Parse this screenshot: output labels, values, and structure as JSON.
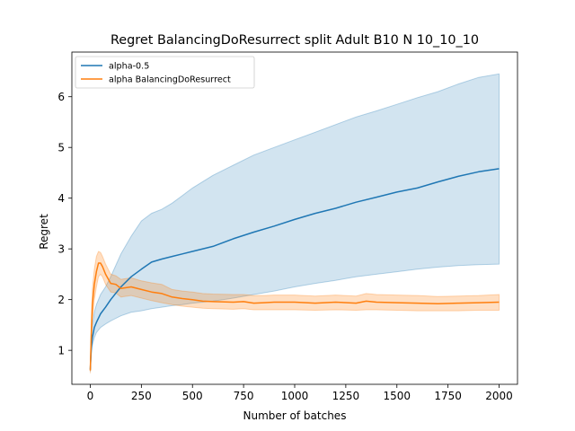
{
  "chart_data": {
    "type": "line",
    "title": "Regret BalancingDoResurrect split Adult B10 N 10_10_10",
    "xlabel": "Number of batches",
    "ylabel": "Regret",
    "xlim": [
      -90,
      2090
    ],
    "ylim": [
      0.33,
      6.88
    ],
    "xticks": [
      0,
      250,
      500,
      750,
      1000,
      1250,
      1500,
      1750,
      2000
    ],
    "yticks": [
      1,
      2,
      3,
      4,
      5,
      6
    ],
    "grid": false,
    "legend_position": "upper left",
    "series": [
      {
        "name": "alpha-0.5",
        "color": "#1f77b4",
        "band_color": "#1f77b4",
        "band_opacity": 0.2,
        "x": [
          0,
          5,
          10,
          20,
          30,
          50,
          75,
          100,
          150,
          200,
          250,
          300,
          350,
          400,
          450,
          500,
          600,
          700,
          800,
          900,
          1000,
          1100,
          1200,
          1300,
          1400,
          1500,
          1600,
          1700,
          1800,
          1900,
          2000
        ],
        "mean": [
          0.62,
          1.05,
          1.25,
          1.45,
          1.55,
          1.72,
          1.85,
          2.0,
          2.25,
          2.45,
          2.6,
          2.74,
          2.8,
          2.85,
          2.9,
          2.95,
          3.05,
          3.2,
          3.33,
          3.45,
          3.58,
          3.7,
          3.8,
          3.92,
          4.02,
          4.12,
          4.2,
          4.32,
          4.43,
          4.52,
          4.58
        ],
        "lower": [
          0.58,
          0.95,
          1.1,
          1.25,
          1.35,
          1.45,
          1.52,
          1.58,
          1.68,
          1.75,
          1.78,
          1.82,
          1.85,
          1.88,
          1.9,
          1.93,
          1.97,
          2.03,
          2.1,
          2.17,
          2.25,
          2.32,
          2.38,
          2.45,
          2.5,
          2.55,
          2.6,
          2.64,
          2.67,
          2.69,
          2.7
        ],
        "upper": [
          0.7,
          1.3,
          1.5,
          1.75,
          1.9,
          2.1,
          2.25,
          2.45,
          2.9,
          3.25,
          3.55,
          3.7,
          3.78,
          3.9,
          4.05,
          4.2,
          4.45,
          4.65,
          4.85,
          5.0,
          5.15,
          5.3,
          5.45,
          5.6,
          5.72,
          5.85,
          5.98,
          6.1,
          6.25,
          6.38,
          6.45
        ]
      },
      {
        "name": "alpha BalancingDoResurrect",
        "color": "#ff7f0e",
        "band_color": "#ff7f0e",
        "band_opacity": 0.25,
        "x": [
          0,
          5,
          10,
          20,
          30,
          40,
          50,
          60,
          75,
          100,
          125,
          150,
          200,
          250,
          300,
          350,
          400,
          450,
          500,
          550,
          600,
          700,
          750,
          800,
          850,
          900,
          1000,
          1100,
          1200,
          1300,
          1350,
          1400,
          1500,
          1600,
          1700,
          1800,
          1900,
          2000
        ],
        "mean": [
          0.6,
          1.3,
          1.9,
          2.3,
          2.55,
          2.72,
          2.72,
          2.65,
          2.5,
          2.32,
          2.3,
          2.22,
          2.25,
          2.2,
          2.15,
          2.12,
          2.05,
          2.02,
          2.0,
          1.97,
          1.96,
          1.95,
          1.96,
          1.93,
          1.94,
          1.95,
          1.95,
          1.93,
          1.95,
          1.93,
          1.97,
          1.95,
          1.94,
          1.93,
          1.92,
          1.93,
          1.94,
          1.95
        ],
        "lower": [
          0.55,
          1.1,
          1.6,
          2.0,
          2.25,
          2.45,
          2.5,
          2.45,
          2.3,
          2.15,
          2.13,
          2.05,
          2.08,
          2.03,
          1.98,
          1.94,
          1.9,
          1.87,
          1.85,
          1.83,
          1.82,
          1.81,
          1.82,
          1.8,
          1.8,
          1.8,
          1.8,
          1.79,
          1.8,
          1.79,
          1.8,
          1.8,
          1.79,
          1.78,
          1.78,
          1.78,
          1.79,
          1.79
        ],
        "upper": [
          0.68,
          1.5,
          2.2,
          2.6,
          2.85,
          2.95,
          2.93,
          2.85,
          2.7,
          2.5,
          2.47,
          2.4,
          2.43,
          2.37,
          2.33,
          2.3,
          2.2,
          2.17,
          2.15,
          2.12,
          2.11,
          2.1,
          2.1,
          2.08,
          2.08,
          2.09,
          2.09,
          2.07,
          2.09,
          2.07,
          2.12,
          2.1,
          2.09,
          2.08,
          2.06,
          2.07,
          2.08,
          2.1
        ]
      }
    ]
  }
}
